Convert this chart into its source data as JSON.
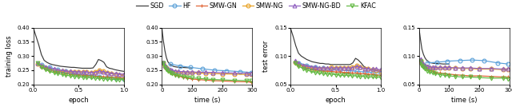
{
  "sgd_color": "#3a3a3a",
  "hf_color": "#5aa0d8",
  "smwgn_color": "#e06030",
  "smwng_color": "#e8a020",
  "smwngbd_color": "#9060c0",
  "kfac_color": "#60b840",
  "plot1_xlabel": "epoch",
  "plot1_ylabel": "training loss",
  "plot1_xlim": [
    0,
    1
  ],
  "plot1_ylim": [
    0.2,
    0.4
  ],
  "plot1_yticks": [
    0.2,
    0.25,
    0.3,
    0.35,
    0.4
  ],
  "plot1_xticks": [
    0,
    0.5,
    1
  ],
  "plot2_xlabel": "time (s)",
  "plot2_ylabel": "",
  "plot2_xlim": [
    0,
    300
  ],
  "plot2_ylim": [
    0.2,
    0.4
  ],
  "plot2_yticks": [
    0.2,
    0.25,
    0.3,
    0.35,
    0.4
  ],
  "plot2_xticks": [
    0,
    100,
    200,
    300
  ],
  "plot3_xlabel": "epoch",
  "plot3_ylabel": "test error",
  "plot3_xlim": [
    0,
    1
  ],
  "plot3_ylim": [
    0.05,
    0.15
  ],
  "plot3_yticks": [
    0.05,
    0.1,
    0.15
  ],
  "plot3_xticks": [
    0,
    0.5,
    1
  ],
  "plot4_xlabel": "time (s)",
  "plot4_ylabel": "",
  "plot4_xlim": [
    0,
    300
  ],
  "plot4_ylim": [
    0.05,
    0.15
  ],
  "plot4_yticks": [
    0.05,
    0.1,
    0.15
  ],
  "plot4_xticks": [
    0,
    100,
    200,
    300
  ],
  "figsize": [
    6.4,
    1.39
  ],
  "dpi": 100
}
